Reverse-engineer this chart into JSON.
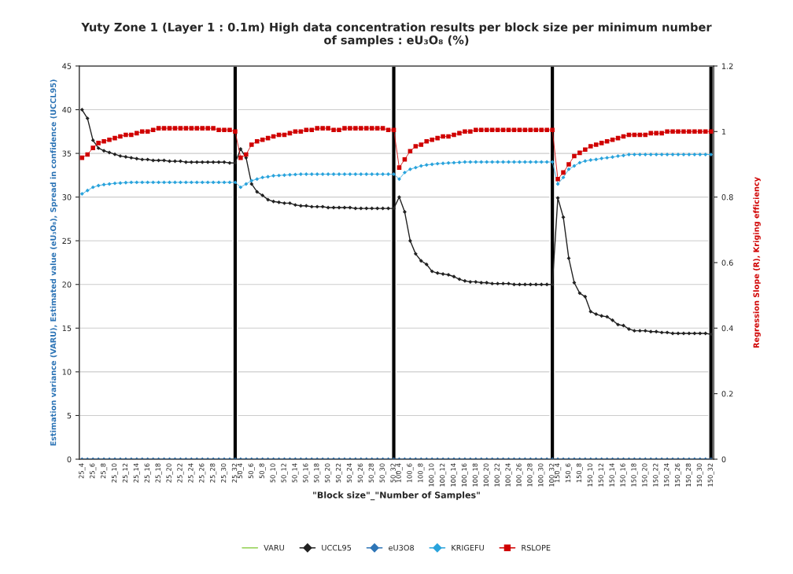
{
  "chart_data": {
    "type": "line",
    "title": "Yuty Zone 1 (Layer 1 : 0.1m) High data concentration results per block size per minimum number\nof samples : eU₃O₈ (%)",
    "xlabel": "\"Block size\"_\"Number of Samples\"",
    "ylabel": "Estimation variance (VARU), Estimated value (eU₃O₈), Spread in confidence (UCCL95)",
    "y2label": "Regression Slope (R), Kriging efficiency",
    "categories": [
      "25_4",
      null,
      "25_6",
      null,
      "25_8",
      null,
      "25_10",
      null,
      "25_12",
      null,
      "25_14",
      null,
      "25_16",
      null,
      "25_18",
      null,
      "25_20",
      null,
      "25_22",
      null,
      "25_24",
      null,
      "25_26",
      null,
      "25_28",
      null,
      "25_30",
      null,
      "25_32",
      "50_4",
      null,
      "50_6",
      null,
      "50_8",
      null,
      "50_10",
      null,
      "50_12",
      null,
      "50_14",
      null,
      "50_16",
      null,
      "50_18",
      null,
      "50_20",
      null,
      "50_22",
      null,
      "50_24",
      null,
      "50_26",
      null,
      "50_28",
      null,
      "50_30",
      null,
      "50_32",
      "100_4",
      null,
      "100_6",
      null,
      "100_8",
      null,
      "100_10",
      null,
      "100_12",
      null,
      "100_14",
      null,
      "100_16",
      null,
      "100_18",
      null,
      "100_20",
      null,
      "100_22",
      null,
      "100_24",
      null,
      "100_26",
      null,
      "100_28",
      null,
      "100_30",
      null,
      "100_32",
      "150_4",
      null,
      "150_6",
      null,
      "150_8",
      null,
      "150_10",
      null,
      "150_12",
      null,
      "150_14",
      null,
      "150_16",
      null,
      "150_18",
      null,
      "150_20",
      null,
      "150_22",
      null,
      "150_24",
      null,
      "150_26",
      null,
      "150_28",
      null,
      "150_30",
      null,
      "150_32"
    ],
    "series": [
      {
        "type": "bar",
        "color": "#000000",
        "values": [
          null,
          null,
          null,
          null,
          null,
          null,
          null,
          null,
          null,
          null,
          null,
          null,
          null,
          null,
          null,
          null,
          null,
          null,
          null,
          null,
          null,
          null,
          null,
          null,
          null,
          null,
          null,
          null,
          45,
          null,
          null,
          null,
          null,
          null,
          null,
          null,
          null,
          null,
          null,
          null,
          null,
          null,
          null,
          null,
          null,
          null,
          null,
          null,
          null,
          null,
          null,
          null,
          null,
          null,
          null,
          null,
          null,
          45,
          null,
          null,
          null,
          null,
          null,
          null,
          null,
          null,
          null,
          null,
          null,
          null,
          null,
          null,
          null,
          null,
          null,
          null,
          null,
          null,
          null,
          null,
          null,
          null,
          null,
          null,
          null,
          null,
          45,
          null,
          null,
          null,
          null,
          null,
          null,
          null,
          null,
          null,
          null,
          null,
          null,
          null,
          null,
          null,
          null,
          null,
          null,
          null,
          null,
          null,
          null,
          null,
          null,
          null,
          null,
          null,
          null,
          45
        ]
      },
      {
        "name": "VARU",
        "color": "#92d050",
        "marker": "none",
        "values": [
          null,
          null,
          null,
          null,
          null,
          null,
          null,
          null,
          null,
          null,
          null,
          null,
          null,
          null,
          null,
          null,
          null,
          null,
          null,
          null,
          null,
          null,
          null,
          null,
          null,
          null,
          null,
          null,
          null,
          null,
          null,
          null,
          null,
          null,
          null,
          null,
          null,
          null,
          null,
          null,
          null,
          null,
          null,
          null,
          null,
          null,
          null,
          null,
          null,
          null,
          null,
          null,
          null,
          null,
          null,
          null,
          null,
          null,
          null,
          null,
          null,
          null,
          null,
          null,
          null,
          null,
          null,
          null,
          null,
          null,
          null,
          null,
          null,
          null,
          null,
          null,
          null,
          null,
          null,
          null,
          null,
          null,
          null,
          null,
          null,
          null,
          null,
          null,
          null,
          null,
          null,
          null,
          null,
          null,
          null,
          null,
          null,
          null,
          null,
          null,
          null,
          null,
          null,
          null,
          null,
          null,
          null,
          null,
          null,
          null,
          null,
          null,
          null,
          null,
          null,
          null
        ]
      },
      {
        "name": "UCCL95",
        "color": "#222222",
        "marker": "diamond",
        "values": [
          40,
          39,
          36.5,
          35.6,
          35.3,
          35.1,
          34.9,
          34.7,
          34.6,
          34.5,
          34.4,
          34.3,
          34.3,
          34.2,
          34.2,
          34.2,
          34.1,
          34.1,
          34.1,
          34.0,
          34.0,
          34.0,
          34.0,
          34.0,
          34.0,
          34.0,
          34.0,
          33.9,
          33.9,
          35.5,
          34.5,
          31.5,
          30.6,
          30.2,
          29.7,
          29.5,
          29.4,
          29.3,
          29.3,
          29.1,
          29.0,
          29.0,
          28.9,
          28.9,
          28.9,
          28.8,
          28.8,
          28.8,
          28.8,
          28.8,
          28.7,
          28.7,
          28.7,
          28.7,
          28.7,
          28.7,
          28.7,
          28.7,
          30.0,
          28.3,
          25.0,
          23.5,
          22.7,
          22.3,
          21.5,
          21.3,
          21.2,
          21.1,
          20.9,
          20.6,
          20.4,
          20.3,
          20.3,
          20.2,
          20.2,
          20.1,
          20.1,
          20.1,
          20.1,
          20.0,
          20.0,
          20.0,
          20.0,
          20.0,
          20.0,
          20.0,
          20.0,
          29.9,
          27.7,
          23.0,
          20.2,
          19.0,
          18.6,
          16.9,
          16.6,
          16.4,
          16.3,
          15.9,
          15.4,
          15.3,
          14.9,
          14.7,
          14.7,
          14.7,
          14.6,
          14.6,
          14.5,
          14.5,
          14.4,
          14.4,
          14.4,
          14.4,
          14.4,
          14.4,
          14.4,
          14.3
        ]
      },
      {
        "name": "eU3O8",
        "color": "#2e75b6",
        "marker": "diamond",
        "values": [
          0,
          0,
          0,
          0,
          0,
          0,
          0,
          0,
          0,
          0,
          0,
          0,
          0,
          0,
          0,
          0,
          0,
          0,
          0,
          0,
          0,
          0,
          0,
          0,
          0,
          0,
          0,
          0,
          0,
          0,
          0,
          0,
          0,
          0,
          0,
          0,
          0,
          0,
          0,
          0,
          0,
          0,
          0,
          0,
          0,
          0,
          0,
          0,
          0,
          0,
          0,
          0,
          0,
          0,
          0,
          0,
          0,
          0,
          0,
          0,
          0,
          0,
          0,
          0,
          0,
          0,
          0,
          0,
          0,
          0,
          0,
          0,
          0,
          0,
          0,
          0,
          0,
          0,
          0,
          0,
          0,
          0,
          0,
          0,
          0,
          0,
          0,
          0,
          0,
          0,
          0,
          0,
          0,
          0,
          0,
          0,
          0,
          0,
          0,
          0,
          0,
          0,
          0,
          0,
          0,
          0,
          0,
          0,
          0,
          0,
          0,
          0,
          0,
          0,
          0,
          0
        ]
      },
      {
        "name": "KRIGEFU",
        "color": "#29a3dc",
        "marker": "diamond",
        "axis": "y2",
        "values": [
          0.81,
          0.82,
          0.83,
          0.835,
          0.838,
          0.84,
          0.842,
          0.843,
          0.844,
          0.845,
          0.845,
          0.845,
          0.845,
          0.845,
          0.845,
          0.845,
          0.845,
          0.845,
          0.845,
          0.845,
          0.845,
          0.845,
          0.845,
          0.845,
          0.845,
          0.845,
          0.845,
          0.845,
          0.845,
          0.83,
          0.84,
          0.85,
          0.855,
          0.86,
          0.862,
          0.865,
          0.866,
          0.867,
          0.868,
          0.869,
          0.87,
          0.87,
          0.87,
          0.87,
          0.87,
          0.87,
          0.87,
          0.87,
          0.87,
          0.87,
          0.87,
          0.87,
          0.87,
          0.87,
          0.87,
          0.87,
          0.87,
          0.87,
          0.855,
          0.875,
          0.885,
          0.89,
          0.895,
          0.898,
          0.9,
          0.902,
          0.903,
          0.904,
          0.905,
          0.906,
          0.907,
          0.907,
          0.907,
          0.907,
          0.907,
          0.907,
          0.907,
          0.907,
          0.907,
          0.907,
          0.907,
          0.907,
          0.907,
          0.907,
          0.907,
          0.907,
          0.907,
          0.84,
          0.86,
          0.885,
          0.895,
          0.905,
          0.91,
          0.913,
          0.915,
          0.918,
          0.92,
          0.922,
          0.925,
          0.927,
          0.93,
          0.93,
          0.93,
          0.93,
          0.93,
          0.93,
          0.93,
          0.93,
          0.93,
          0.93,
          0.93,
          0.93,
          0.93,
          0.93,
          0.93,
          0.93
        ]
      },
      {
        "name": "RSLOPE",
        "color": "#d00000",
        "marker": "square",
        "axis": "y2",
        "values": [
          0.92,
          0.93,
          0.95,
          0.965,
          0.97,
          0.975,
          0.98,
          0.985,
          0.99,
          0.99,
          0.995,
          1.0,
          1.0,
          1.005,
          1.01,
          1.01,
          1.01,
          1.01,
          1.01,
          1.01,
          1.01,
          1.01,
          1.01,
          1.01,
          1.01,
          1.005,
          1.005,
          1.005,
          1.0,
          0.92,
          0.93,
          0.96,
          0.97,
          0.975,
          0.98,
          0.985,
          0.99,
          0.99,
          0.995,
          1.0,
          1.0,
          1.005,
          1.005,
          1.01,
          1.01,
          1.01,
          1.005,
          1.005,
          1.01,
          1.01,
          1.01,
          1.01,
          1.01,
          1.01,
          1.01,
          1.01,
          1.005,
          1.005,
          0.89,
          0.915,
          0.94,
          0.955,
          0.96,
          0.97,
          0.975,
          0.98,
          0.985,
          0.985,
          0.99,
          0.995,
          1.0,
          1.0,
          1.005,
          1.005,
          1.005,
          1.005,
          1.005,
          1.005,
          1.005,
          1.005,
          1.005,
          1.005,
          1.005,
          1.005,
          1.005,
          1.005,
          1.005,
          0.855,
          0.875,
          0.9,
          0.925,
          0.935,
          0.945,
          0.955,
          0.96,
          0.965,
          0.97,
          0.975,
          0.98,
          0.985,
          0.99,
          0.99,
          0.99,
          0.99,
          0.995,
          0.995,
          0.995,
          1.0,
          1.0,
          1.0,
          1.0,
          1.0,
          1.0,
          1.0,
          1.0,
          1.0
        ]
      }
    ],
    "ylim": [
      0,
      45
    ],
    "yticks": [
      0,
      5,
      10,
      15,
      20,
      25,
      30,
      35,
      40,
      45
    ],
    "y2lim": [
      0,
      1.2
    ],
    "y2ticks": [
      0,
      0.2,
      0.4,
      0.6,
      0.8,
      1,
      1.2
    ],
    "grid": "y",
    "legend": "bottom",
    "line_style": "solid"
  }
}
